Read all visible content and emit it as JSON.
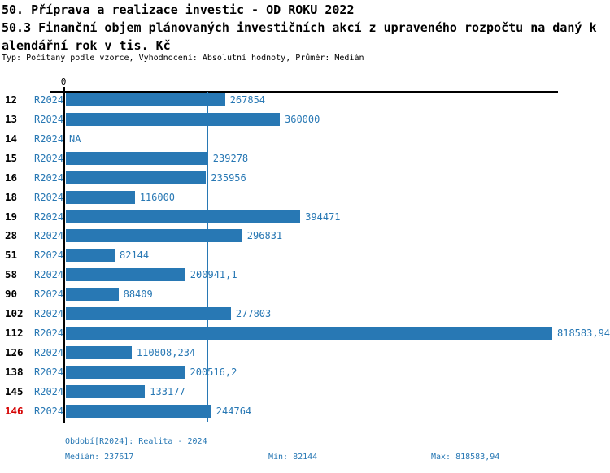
{
  "header": {
    "title_line1": "50. Příprava a realizace investic - OD ROKU 2022",
    "title_line2": "50.3 Finanční objem plánovaných investičních akcí z upraveného rozpočtu na daný k",
    "title_line3": "alendářní rok v tis. Kč",
    "meta": "Typ: Počítaný podle vzorce, Vyhodnocení: Absolutní hodnoty, Průměr: Medián"
  },
  "chart": {
    "zero_label": "0"
  },
  "chart_data": {
    "type": "bar",
    "orientation": "horizontal",
    "title": "50. Příprava a realizace investic - OD ROKU 2022",
    "subtitle": "50.3 Finanční objem plánovaných investičních akcí z upraveného rozpočtu na daný kalendářní rok v tis. Kč",
    "meta": "Typ: Počítaný podle vzorce, Vyhodnocení: Absolutní hodnoty, Průměr: Medián",
    "series_label": "R2024",
    "x_axis": {
      "origin_label": "0",
      "max": 818583.94
    },
    "median_value": 237617,
    "bar_color": "#2878b4",
    "highlight_color": "#d40000",
    "categories": [
      "12",
      "13",
      "14",
      "15",
      "16",
      "18",
      "19",
      "28",
      "51",
      "58",
      "90",
      "102",
      "112",
      "126",
      "138",
      "145",
      "146"
    ],
    "rows": [
      {
        "id": "12",
        "series": "R2024",
        "value": 267854,
        "label": "267854"
      },
      {
        "id": "13",
        "series": "R2024",
        "value": 360000,
        "label": "360000"
      },
      {
        "id": "14",
        "series": "R2024",
        "value": null,
        "label": "NA"
      },
      {
        "id": "15",
        "series": "R2024",
        "value": 239278,
        "label": "239278"
      },
      {
        "id": "16",
        "series": "R2024",
        "value": 235956,
        "label": "235956"
      },
      {
        "id": "18",
        "series": "R2024",
        "value": 116000,
        "label": "116000"
      },
      {
        "id": "19",
        "series": "R2024",
        "value": 394471,
        "label": "394471"
      },
      {
        "id": "28",
        "series": "R2024",
        "value": 296831,
        "label": "296831"
      },
      {
        "id": "51",
        "series": "R2024",
        "value": 82144,
        "label": "82144"
      },
      {
        "id": "58",
        "series": "R2024",
        "value": 200941.1,
        "label": "200941,1"
      },
      {
        "id": "90",
        "series": "R2024",
        "value": 88409,
        "label": "88409"
      },
      {
        "id": "102",
        "series": "R2024",
        "value": 277803,
        "label": "277803"
      },
      {
        "id": "112",
        "series": "R2024",
        "value": 818583.94,
        "label": "818583,94"
      },
      {
        "id": "126",
        "series": "R2024",
        "value": 110808.234,
        "label": "110808,234"
      },
      {
        "id": "138",
        "series": "R2024",
        "value": 200516.2,
        "label": "200516,2"
      },
      {
        "id": "145",
        "series": "R2024",
        "value": 133177,
        "label": "133177"
      },
      {
        "id": "146",
        "series": "R2024",
        "value": 244764,
        "label": "244764",
        "highlight": true
      }
    ]
  },
  "footer": {
    "period": "Období[R2024]: Realita - 2024",
    "median": "Medián: 237617",
    "min": "Min: 82144",
    "max": "Max: 818583,94"
  },
  "colors": {
    "accent_blue": "#2878b4",
    "highlight_red": "#d40000",
    "axis_black": "#000000"
  }
}
